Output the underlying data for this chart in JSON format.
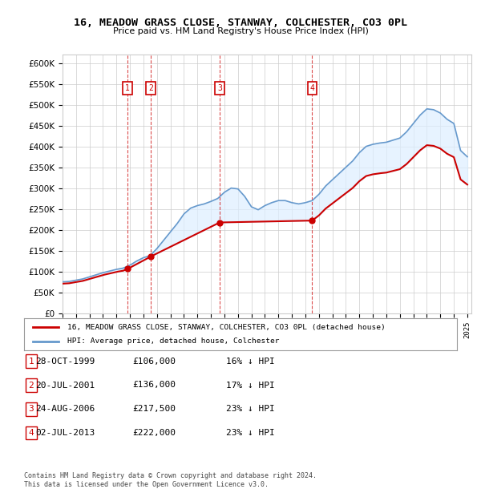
{
  "title": "16, MEADOW GRASS CLOSE, STANWAY, COLCHESTER, CO3 0PL",
  "subtitle": "Price paid vs. HM Land Registry's House Price Index (HPI)",
  "xlabel": "",
  "ylabel": "",
  "ylim": [
    0,
    620000
  ],
  "yticks": [
    0,
    50000,
    100000,
    150000,
    200000,
    250000,
    300000,
    350000,
    400000,
    450000,
    500000,
    550000,
    600000
  ],
  "ytick_labels": [
    "£0",
    "£50K",
    "£100K",
    "£150K",
    "£200K",
    "£250K",
    "£300K",
    "£350K",
    "£400K",
    "£450K",
    "£500K",
    "£550K",
    "£600K"
  ],
  "sale_dates": [
    1999.82,
    2001.55,
    2006.65,
    2013.5
  ],
  "sale_prices": [
    106000,
    136000,
    217500,
    222000
  ],
  "sale_labels": [
    "1",
    "2",
    "3",
    "4"
  ],
  "legend_entries": [
    "16, MEADOW GRASS CLOSE, STANWAY, COLCHESTER, CO3 0PL (detached house)",
    "HPI: Average price, detached house, Colchester"
  ],
  "table_rows": [
    [
      "1",
      "28-OCT-1999",
      "£106,000",
      "16% ↓ HPI"
    ],
    [
      "2",
      "20-JUL-2001",
      "£136,000",
      "17% ↓ HPI"
    ],
    [
      "3",
      "24-AUG-2006",
      "£217,500",
      "23% ↓ HPI"
    ],
    [
      "4",
      "02-JUL-2013",
      "£222,000",
      "23% ↓ HPI"
    ]
  ],
  "footer": "Contains HM Land Registry data © Crown copyright and database right 2024.\nThis data is licensed under the Open Government Licence v3.0.",
  "line_color_red": "#cc0000",
  "line_color_blue": "#6699cc",
  "shading_color": "#ddeeff",
  "box_color": "#cc0000",
  "background_color": "#ffffff",
  "grid_color": "#cccccc"
}
